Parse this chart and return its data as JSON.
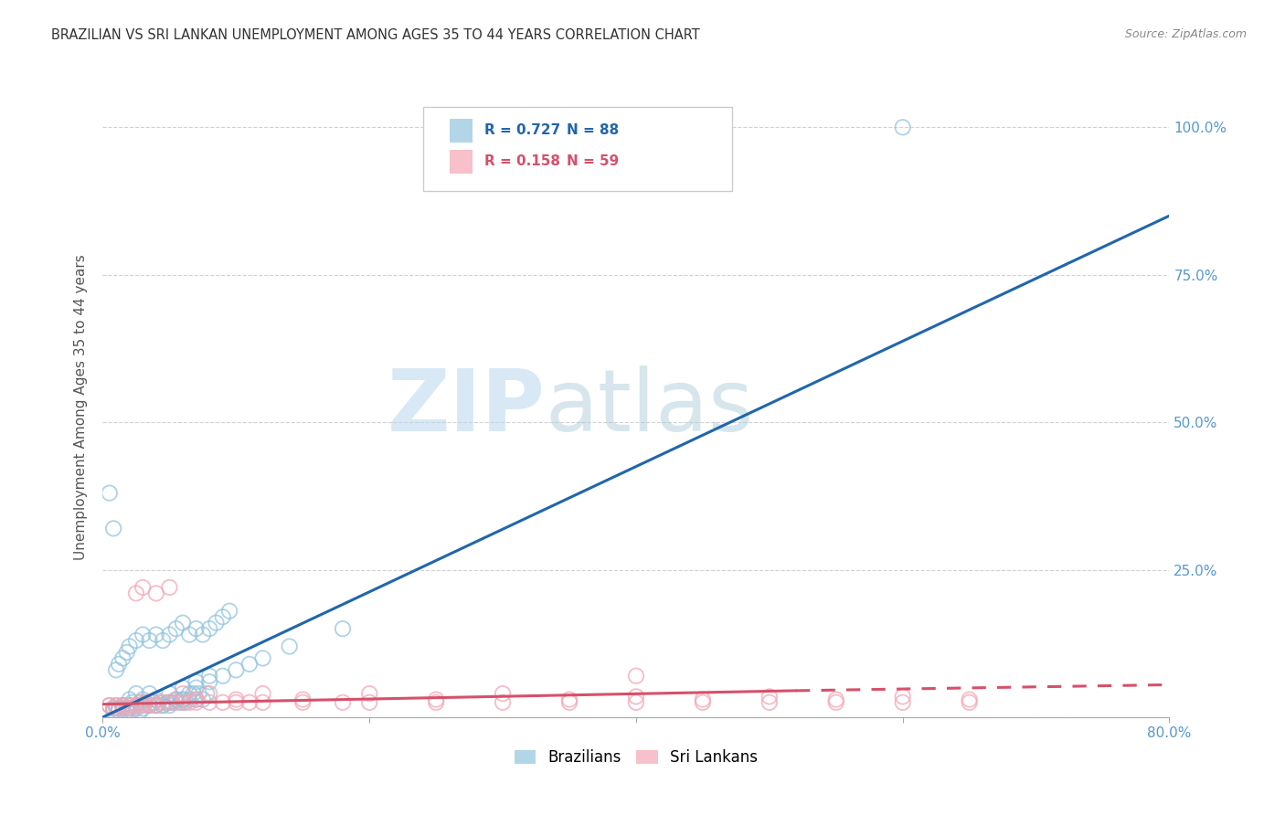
{
  "title": "BRAZILIAN VS SRI LANKAN UNEMPLOYMENT AMONG AGES 35 TO 44 YEARS CORRELATION CHART",
  "source": "Source: ZipAtlas.com",
  "ylabel": "Unemployment Among Ages 35 to 44 years",
  "xlim": [
    0.0,
    0.8
  ],
  "ylim": [
    0.0,
    1.05
  ],
  "brazil_R": 0.727,
  "brazil_N": 88,
  "srilanka_R": 0.158,
  "srilanka_N": 59,
  "brazil_color": "#92c5de",
  "srilanka_color": "#f4a6b4",
  "brazil_line_color": "#4393c3",
  "srilanka_line_color": "#d6604d",
  "brazil_line_color2": "#2166ac",
  "srilanka_line_color2": "#d6506a",
  "watermark_zip": "ZIP",
  "watermark_atlas": "atlas",
  "background_color": "#ffffff",
  "grid_color": "#cccccc",
  "title_color": "#333333",
  "tick_color": "#5599cc",
  "brazil_scatter_x": [
    0.005,
    0.008,
    0.01,
    0.012,
    0.015,
    0.018,
    0.02,
    0.022,
    0.025,
    0.028,
    0.03,
    0.032,
    0.035,
    0.038,
    0.04,
    0.042,
    0.045,
    0.048,
    0.05,
    0.052,
    0.055,
    0.058,
    0.06,
    0.062,
    0.065,
    0.068,
    0.07,
    0.072,
    0.075,
    0.078,
    0.008,
    0.01,
    0.012,
    0.015,
    0.018,
    0.02,
    0.022,
    0.025,
    0.028,
    0.03,
    0.035,
    0.04,
    0.045,
    0.05,
    0.055,
    0.06,
    0.065,
    0.07,
    0.08,
    0.09,
    0.1,
    0.11,
    0.12,
    0.14,
    0.18,
    0.005,
    0.008,
    0.01,
    0.012,
    0.015,
    0.018,
    0.02,
    0.025,
    0.03,
    0.035,
    0.04,
    0.045,
    0.05,
    0.055,
    0.06,
    0.065,
    0.07,
    0.075,
    0.08,
    0.085,
    0.09,
    0.095,
    0.6,
    0.015,
    0.02,
    0.025,
    0.03,
    0.035,
    0.04,
    0.05,
    0.06,
    0.07,
    0.08
  ],
  "brazil_scatter_y": [
    0.02,
    0.015,
    0.02,
    0.015,
    0.02,
    0.015,
    0.02,
    0.025,
    0.02,
    0.025,
    0.02,
    0.025,
    0.02,
    0.025,
    0.02,
    0.025,
    0.02,
    0.025,
    0.02,
    0.025,
    0.03,
    0.025,
    0.03,
    0.025,
    0.03,
    0.04,
    0.03,
    0.04,
    0.03,
    0.04,
    0.01,
    0.015,
    0.01,
    0.015,
    0.01,
    0.015,
    0.01,
    0.015,
    0.01,
    0.015,
    0.02,
    0.02,
    0.02,
    0.025,
    0.03,
    0.03,
    0.04,
    0.05,
    0.06,
    0.07,
    0.08,
    0.09,
    0.1,
    0.12,
    0.15,
    0.38,
    0.32,
    0.08,
    0.09,
    0.1,
    0.11,
    0.12,
    0.13,
    0.14,
    0.13,
    0.14,
    0.13,
    0.14,
    0.15,
    0.16,
    0.14,
    0.15,
    0.14,
    0.15,
    0.16,
    0.17,
    0.18,
    1.0,
    0.02,
    0.03,
    0.04,
    0.03,
    0.04,
    0.03,
    0.04,
    0.05,
    0.06,
    0.07
  ],
  "srilanka_scatter_x": [
    0.005,
    0.008,
    0.01,
    0.012,
    0.015,
    0.018,
    0.02,
    0.022,
    0.025,
    0.028,
    0.03,
    0.032,
    0.035,
    0.038,
    0.04,
    0.045,
    0.05,
    0.055,
    0.06,
    0.065,
    0.07,
    0.08,
    0.09,
    0.1,
    0.11,
    0.12,
    0.15,
    0.18,
    0.2,
    0.25,
    0.3,
    0.35,
    0.4,
    0.45,
    0.5,
    0.55,
    0.6,
    0.65,
    0.025,
    0.03,
    0.04,
    0.05,
    0.06,
    0.07,
    0.08,
    0.1,
    0.12,
    0.15,
    0.2,
    0.25,
    0.3,
    0.35,
    0.4,
    0.45,
    0.5,
    0.55,
    0.6,
    0.65,
    0.4
  ],
  "srilanka_scatter_y": [
    0.02,
    0.015,
    0.02,
    0.015,
    0.02,
    0.015,
    0.02,
    0.015,
    0.02,
    0.025,
    0.02,
    0.025,
    0.02,
    0.025,
    0.02,
    0.025,
    0.025,
    0.025,
    0.025,
    0.025,
    0.025,
    0.025,
    0.025,
    0.025,
    0.025,
    0.025,
    0.025,
    0.025,
    0.025,
    0.025,
    0.025,
    0.025,
    0.025,
    0.025,
    0.025,
    0.025,
    0.025,
    0.025,
    0.21,
    0.22,
    0.21,
    0.22,
    0.04,
    0.03,
    0.04,
    0.03,
    0.04,
    0.03,
    0.04,
    0.03,
    0.04,
    0.03,
    0.035,
    0.03,
    0.035,
    0.03,
    0.035,
    0.03,
    0.07
  ]
}
